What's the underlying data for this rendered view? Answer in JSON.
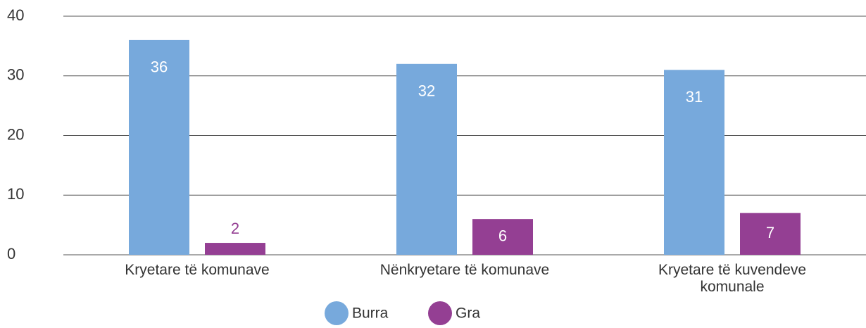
{
  "chart_data": {
    "type": "bar",
    "categories": [
      "Kryetare të komunave",
      "Nënkryetare të komunave",
      "Kryetare të kuvendeve komunale"
    ],
    "series": [
      {
        "name": "Burra",
        "color": "#77a9dc",
        "values": [
          36,
          32,
          31
        ]
      },
      {
        "name": "Gra",
        "color": "#943f93",
        "values": [
          2,
          6,
          7
        ]
      }
    ],
    "ylim": [
      0,
      40
    ],
    "yticks": [
      0,
      10,
      20,
      30,
      40
    ],
    "grid": true,
    "legend": "bottom"
  }
}
